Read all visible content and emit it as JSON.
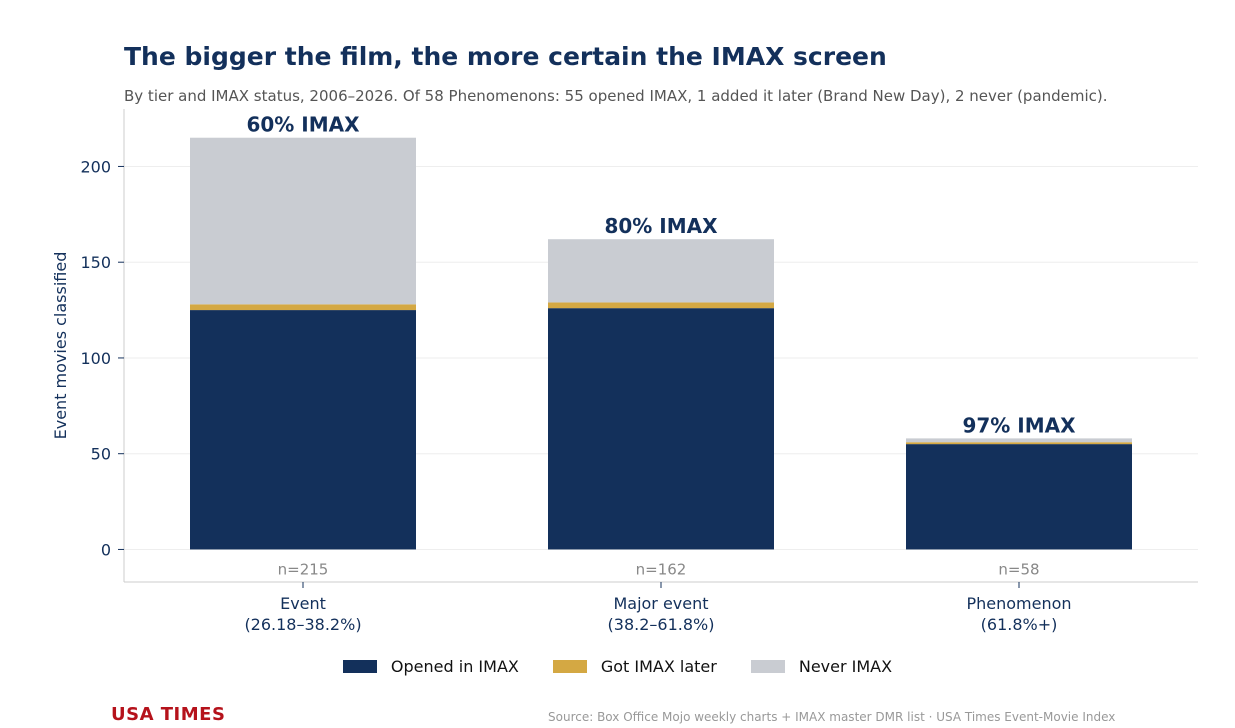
{
  "header": {
    "title": "The bigger the film, the more certain the IMAX screen",
    "subtitle": "By tier and IMAX status, 2006–2026. Of 58 Phenomenons: 55 opened IMAX, 1 added it later (Brand New Day), 2 never (pandemic)."
  },
  "footer": {
    "brand": "USA TIMES",
    "source": "Source: Box Office Mojo weekly charts + IMAX master DMR list · USA Times Event-Movie Index"
  },
  "colors": {
    "opened": "#13305b",
    "later": "#d4a843",
    "never": "#c9ccd2",
    "text": "#13305b",
    "muted": "#888888"
  },
  "chart_data": {
    "type": "bar",
    "stacked": true,
    "ylabel": "Event movies classified",
    "ylim": [
      -17,
      230
    ],
    "yticks": [
      0,
      50,
      100,
      150,
      200
    ],
    "grid": true,
    "legend_position": "bottom",
    "categories": [
      [
        "Event",
        "(26.18–38.2%)"
      ],
      [
        "Major event",
        "(38.2–61.8%)"
      ],
      [
        "Phenomenon",
        "(61.8%+)"
      ]
    ],
    "totals_labels": [
      "n=215",
      "n=162",
      "n=58"
    ],
    "bar_labels": [
      "60% IMAX",
      "80% IMAX",
      "97% IMAX"
    ],
    "series": [
      {
        "name": "Opened in IMAX",
        "color": "#13305b",
        "values": [
          125,
          126,
          55
        ]
      },
      {
        "name": "Got IMAX later",
        "color": "#d4a843",
        "values": [
          3,
          3,
          1
        ]
      },
      {
        "name": "Never IMAX",
        "color": "#c9ccd2",
        "values": [
          87,
          33,
          2
        ]
      }
    ]
  }
}
